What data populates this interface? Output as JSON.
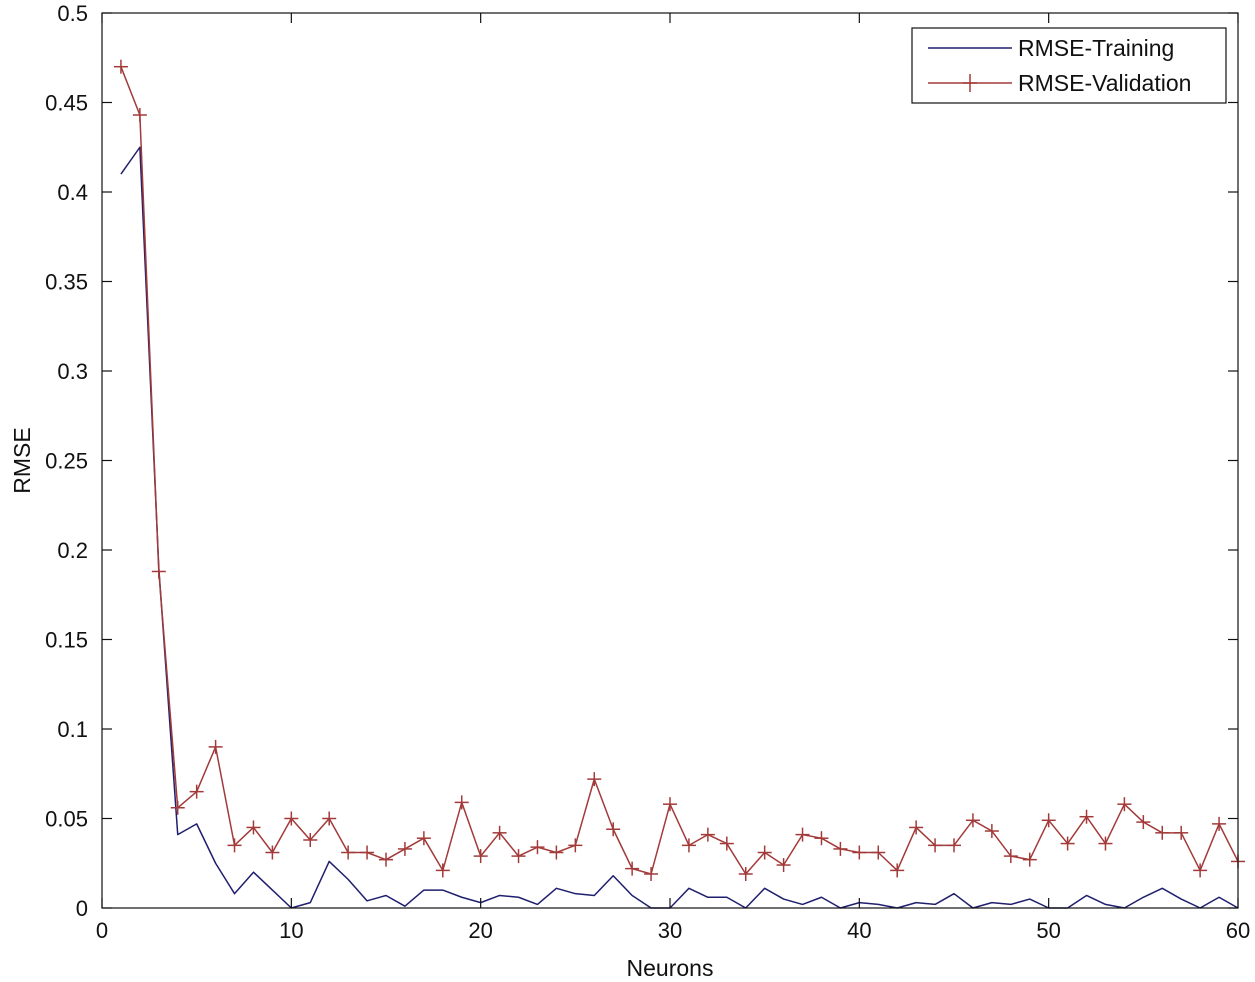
{
  "chart_data": {
    "type": "line",
    "title": "",
    "xlabel": "Neurons",
    "ylabel": "RMSE",
    "xlim": [
      0,
      60
    ],
    "ylim": [
      0,
      0.5
    ],
    "xticks": [
      0,
      10,
      20,
      30,
      40,
      50,
      60
    ],
    "yticks": [
      0,
      0.05,
      0.1,
      0.15,
      0.2,
      0.25,
      0.3,
      0.35,
      0.4,
      0.45,
      0.5
    ],
    "grid": false,
    "legend_position": "top-right",
    "x": [
      1,
      2,
      3,
      4,
      5,
      6,
      7,
      8,
      9,
      10,
      11,
      12,
      13,
      14,
      15,
      16,
      17,
      18,
      19,
      20,
      21,
      22,
      23,
      24,
      25,
      26,
      27,
      28,
      29,
      30,
      31,
      32,
      33,
      34,
      35,
      36,
      37,
      38,
      39,
      40,
      41,
      42,
      43,
      44,
      45,
      46,
      47,
      48,
      49,
      50,
      51,
      52,
      53,
      54,
      55,
      56,
      57,
      58,
      59,
      60
    ],
    "series": [
      {
        "name": "RMSE-Training",
        "color": "#1f1f6e",
        "marker": "none",
        "values": [
          0.41,
          0.425,
          0.19,
          0.041,
          0.047,
          0.025,
          0.008,
          0.02,
          0.01,
          0.0,
          0.003,
          0.026,
          0.016,
          0.004,
          0.007,
          0.001,
          0.01,
          0.01,
          0.006,
          0.003,
          0.007,
          0.006,
          0.002,
          0.011,
          0.008,
          0.007,
          0.018,
          0.007,
          0.0,
          0.0,
          0.011,
          0.006,
          0.006,
          0.0,
          0.011,
          0.005,
          0.002,
          0.006,
          0.0,
          0.003,
          0.002,
          0.0,
          0.003,
          0.002,
          0.008,
          0.0,
          0.003,
          0.002,
          0.005,
          0.0,
          0.0,
          0.007,
          0.002,
          0.0,
          0.006,
          0.011,
          0.005,
          0.0,
          0.006,
          0.0
        ]
      },
      {
        "name": "RMSE-Validation",
        "color": "#a33a3a",
        "marker": "+",
        "values": [
          0.47,
          0.443,
          0.188,
          0.056,
          0.065,
          0.09,
          0.035,
          0.045,
          0.031,
          0.05,
          0.038,
          0.05,
          0.031,
          0.031,
          0.027,
          0.033,
          0.039,
          0.021,
          0.059,
          0.029,
          0.042,
          0.029,
          0.034,
          0.031,
          0.035,
          0.072,
          0.044,
          0.022,
          0.019,
          0.058,
          0.035,
          0.041,
          0.036,
          0.019,
          0.031,
          0.024,
          0.041,
          0.039,
          0.033,
          0.031,
          0.031,
          0.021,
          0.045,
          0.035,
          0.035,
          0.049,
          0.043,
          0.029,
          0.027,
          0.049,
          0.036,
          0.051,
          0.036,
          0.058,
          0.048,
          0.042,
          0.042,
          0.021,
          0.047,
          0.026
        ]
      }
    ]
  }
}
